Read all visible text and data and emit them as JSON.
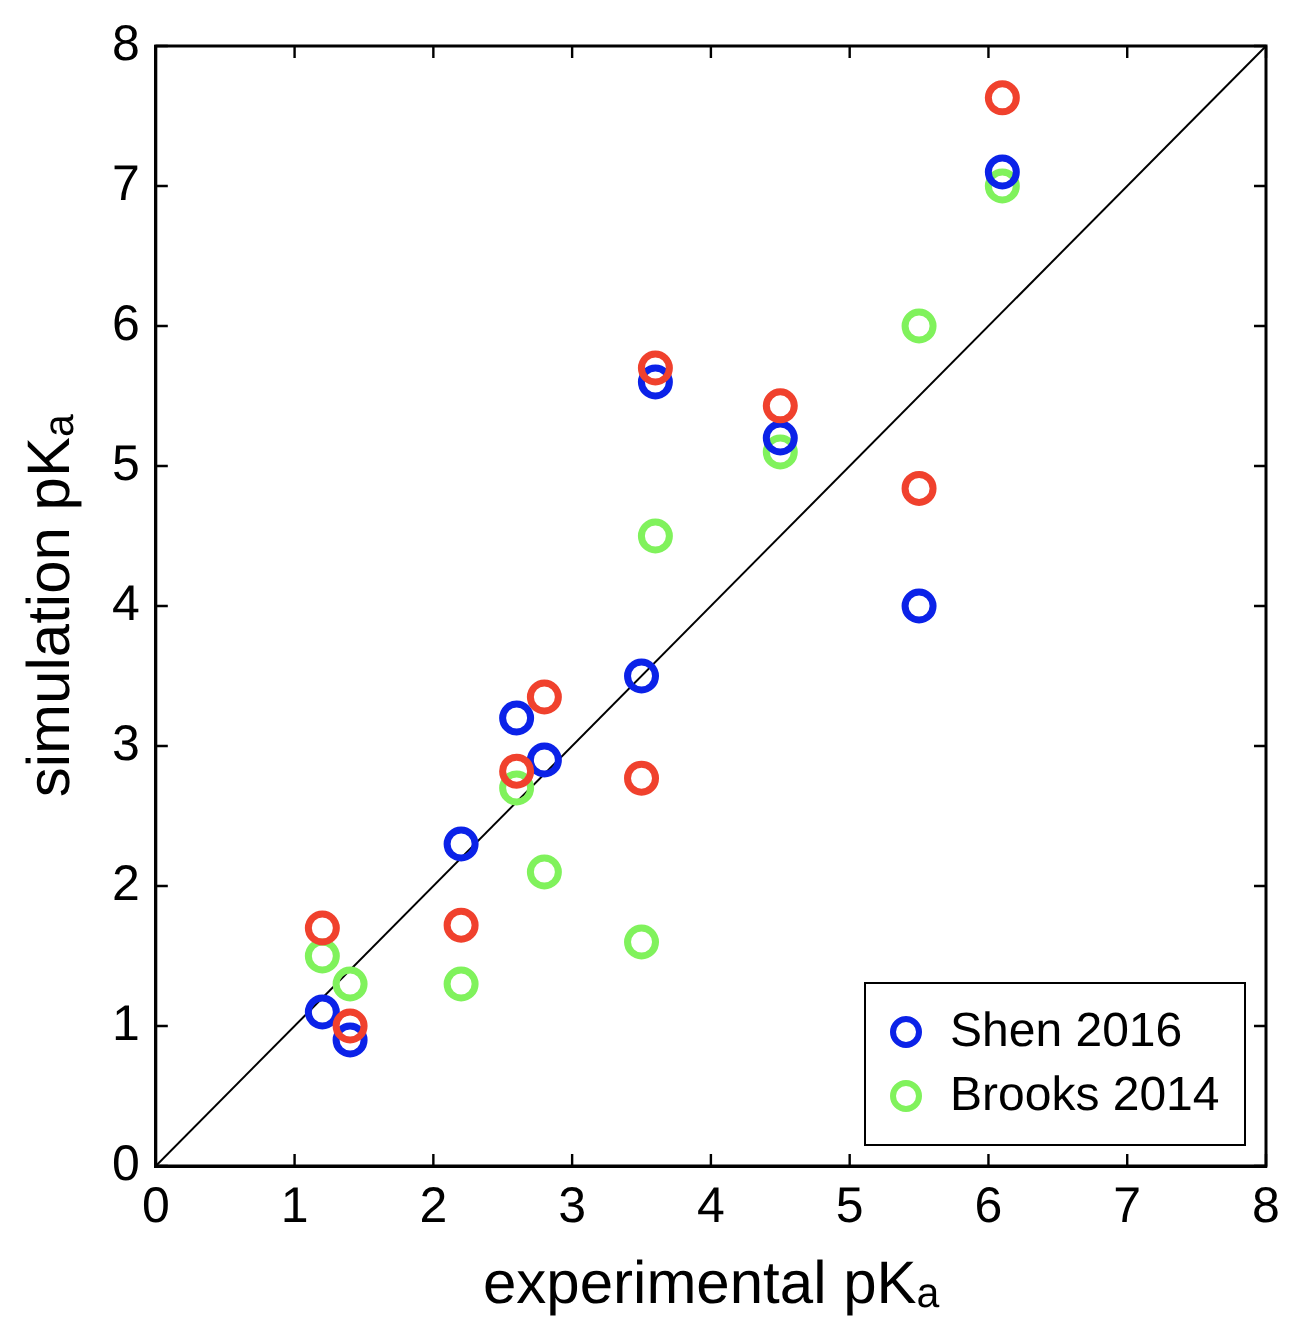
{
  "chart_data": {
    "type": "scatter",
    "xlabel": "experimental pKₐ",
    "ylabel": "simulation pKₐ",
    "xlim": [
      0,
      8
    ],
    "ylim": [
      0,
      8
    ],
    "xticks": [
      0,
      1,
      2,
      3,
      4,
      5,
      6,
      7,
      8
    ],
    "yticks": [
      0,
      1,
      2,
      3,
      4,
      5,
      6,
      7,
      8
    ],
    "grid": false,
    "legend": "bottom right",
    "marker": "circle",
    "series": [
      {
        "color": "#f0412d",
        "x": [
          1.2,
          1.4,
          2.2,
          2.6,
          2.8,
          3.5,
          3.6,
          4.5,
          5.5,
          6.1
        ],
        "values": [
          1.7,
          1.0,
          1.72,
          2.82,
          3.35,
          2.77,
          5.7,
          5.43,
          4.84,
          7.63
        ]
      },
      {
        "name": "Shen 2016",
        "color": "#0b22e8",
        "x": [
          1.2,
          1.4,
          2.2,
          2.6,
          2.8,
          3.5,
          3.6,
          4.5,
          5.5,
          6.1
        ],
        "values": [
          1.1,
          0.9,
          2.3,
          3.2,
          2.9,
          3.5,
          5.6,
          5.2,
          4.0,
          7.1
        ]
      },
      {
        "name": "Brooks 2014",
        "color": "#80f25c",
        "x": [
          1.2,
          1.4,
          2.2,
          2.6,
          2.8,
          3.5,
          3.6,
          4.5,
          5.5,
          6.1
        ],
        "values": [
          1.5,
          1.3,
          1.3,
          2.7,
          2.1,
          1.6,
          4.5,
          5.1,
          6.0,
          7.0
        ]
      },
      {
        "type": "line",
        "color": "#000000",
        "x": [
          0,
          8
        ],
        "values": [
          0,
          8
        ],
        "marker": "none"
      }
    ]
  }
}
